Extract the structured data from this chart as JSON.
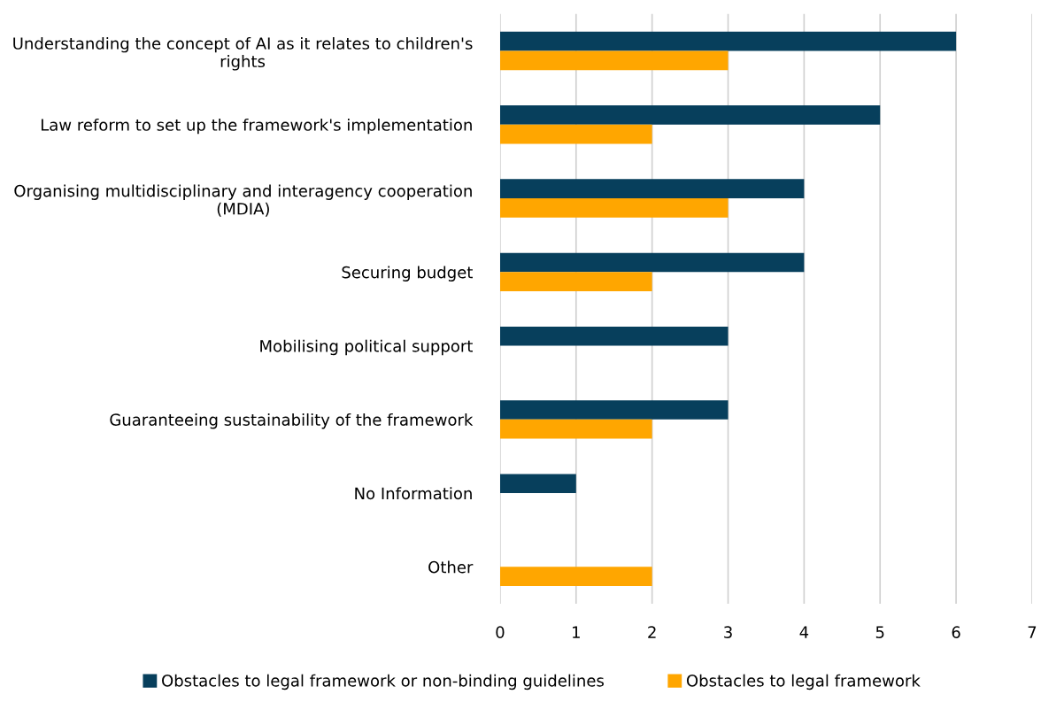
{
  "chart_data": {
    "type": "bar",
    "orientation": "horizontal",
    "categories": [
      "Understanding the concept of AI as it relates to children's\nrights",
      "Law reform to set up the framework's implementation",
      "Organising multidisciplinary and interagency cooperation\n(MDIA)",
      "Securing budget",
      "Mobilising political support",
      "Guaranteeing sustainability of the framework",
      "No Information",
      "Other"
    ],
    "series": [
      {
        "name": "Obstacles to legal framework or non-binding guidelines",
        "color": "#073f5c",
        "values": [
          6,
          5,
          4,
          4,
          3,
          3,
          1,
          null
        ]
      },
      {
        "name": "Obstacles to legal framework",
        "color": "#ffa600",
        "values": [
          3,
          2,
          3,
          2,
          null,
          2,
          null,
          2
        ]
      }
    ],
    "xlim": [
      0,
      7
    ],
    "xticks": [
      0,
      1,
      2,
      3,
      4,
      5,
      6,
      7
    ],
    "grid": "x",
    "legend": "bottom"
  }
}
